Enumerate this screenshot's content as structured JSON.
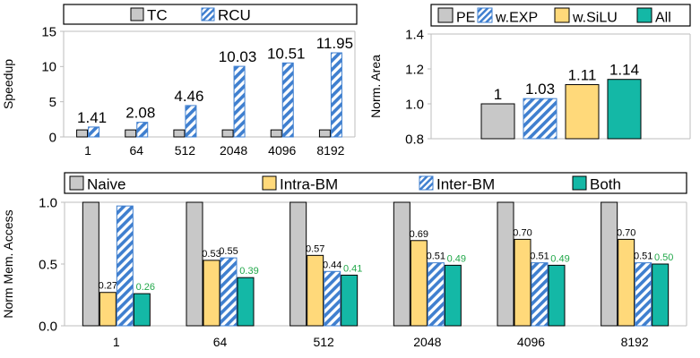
{
  "colors": {
    "gray": "#c8c8c8",
    "blue": "#3f7fcf",
    "yellow": "#ffd97a",
    "teal": "#14b8a6",
    "green_label": "#22a84a",
    "axis": "#bdbdbd",
    "outline": "#000000"
  },
  "chart_data": [
    {
      "id": "speedup",
      "type": "bar",
      "categories": [
        "1",
        "64",
        "512",
        "2048",
        "4096",
        "8192"
      ],
      "series": [
        {
          "name": "TC",
          "values": [
            1,
            1,
            1,
            1,
            1,
            1
          ],
          "style": "gray"
        },
        {
          "name": "RCU",
          "values": [
            1.41,
            2.08,
            4.46,
            10.03,
            10.51,
            11.95
          ],
          "style": "hatch-blue"
        }
      ],
      "data_labels": {
        "RCU": [
          "1.41",
          "2.08",
          "4.46",
          "10.03",
          "10.51",
          "11.95"
        ]
      },
      "ylabel": "Speedup",
      "ylim": [
        0,
        15
      ],
      "yticks": [
        0,
        5,
        10,
        15
      ],
      "legend_position": "top"
    },
    {
      "id": "area",
      "type": "bar",
      "categories": [
        ""
      ],
      "series": [
        {
          "name": "PE",
          "values": [
            1.0
          ],
          "style": "gray"
        },
        {
          "name": "w.EXP",
          "values": [
            1.03
          ],
          "style": "hatch-blue"
        },
        {
          "name": "w.SiLU",
          "values": [
            1.11
          ],
          "style": "yellow"
        },
        {
          "name": "All",
          "values": [
            1.14
          ],
          "style": "teal"
        }
      ],
      "data_labels": [
        "1",
        "1.03",
        "1.11",
        "1.14"
      ],
      "ylabel": "Norm. Area",
      "ylim": [
        0.8,
        1.4
      ],
      "yticks": [
        "0.8",
        "1.0",
        "1.2",
        "1.4"
      ],
      "legend_position": "top"
    },
    {
      "id": "memaccess",
      "type": "bar",
      "categories": [
        "1",
        "64",
        "512",
        "2048",
        "4096",
        "8192"
      ],
      "series": [
        {
          "name": "Naive",
          "values": [
            1.0,
            1.0,
            1.0,
            1.0,
            1.0,
            1.0
          ],
          "style": "gray"
        },
        {
          "name": "Intra-BM",
          "values": [
            0.27,
            0.53,
            0.57,
            0.69,
            0.7,
            0.7
          ],
          "style": "yellow"
        },
        {
          "name": "Inter-BM",
          "values": [
            0.97,
            0.55,
            0.44,
            0.51,
            0.51,
            0.51
          ],
          "style": "hatch-blue"
        },
        {
          "name": "Both",
          "values": [
            0.26,
            0.39,
            0.41,
            0.49,
            0.49,
            0.5
          ],
          "style": "teal"
        }
      ],
      "data_labels": {
        "Intra-BM": [
          "0.27",
          "0.53",
          "0.57",
          "0.69",
          "0.70",
          "0.70"
        ],
        "Inter-BM": [
          "",
          "0.55",
          "0.44",
          "0.51",
          "0.51",
          "0.51"
        ],
        "Both": [
          "0.26",
          "0.39",
          "0.41",
          "0.49",
          "0.49",
          "0.50"
        ]
      },
      "ylabel": "Norm Mem. Access",
      "ylim": [
        0,
        1.0
      ],
      "yticks": [
        "0.0",
        "0.5",
        "1.0"
      ],
      "legend_position": "top"
    }
  ]
}
